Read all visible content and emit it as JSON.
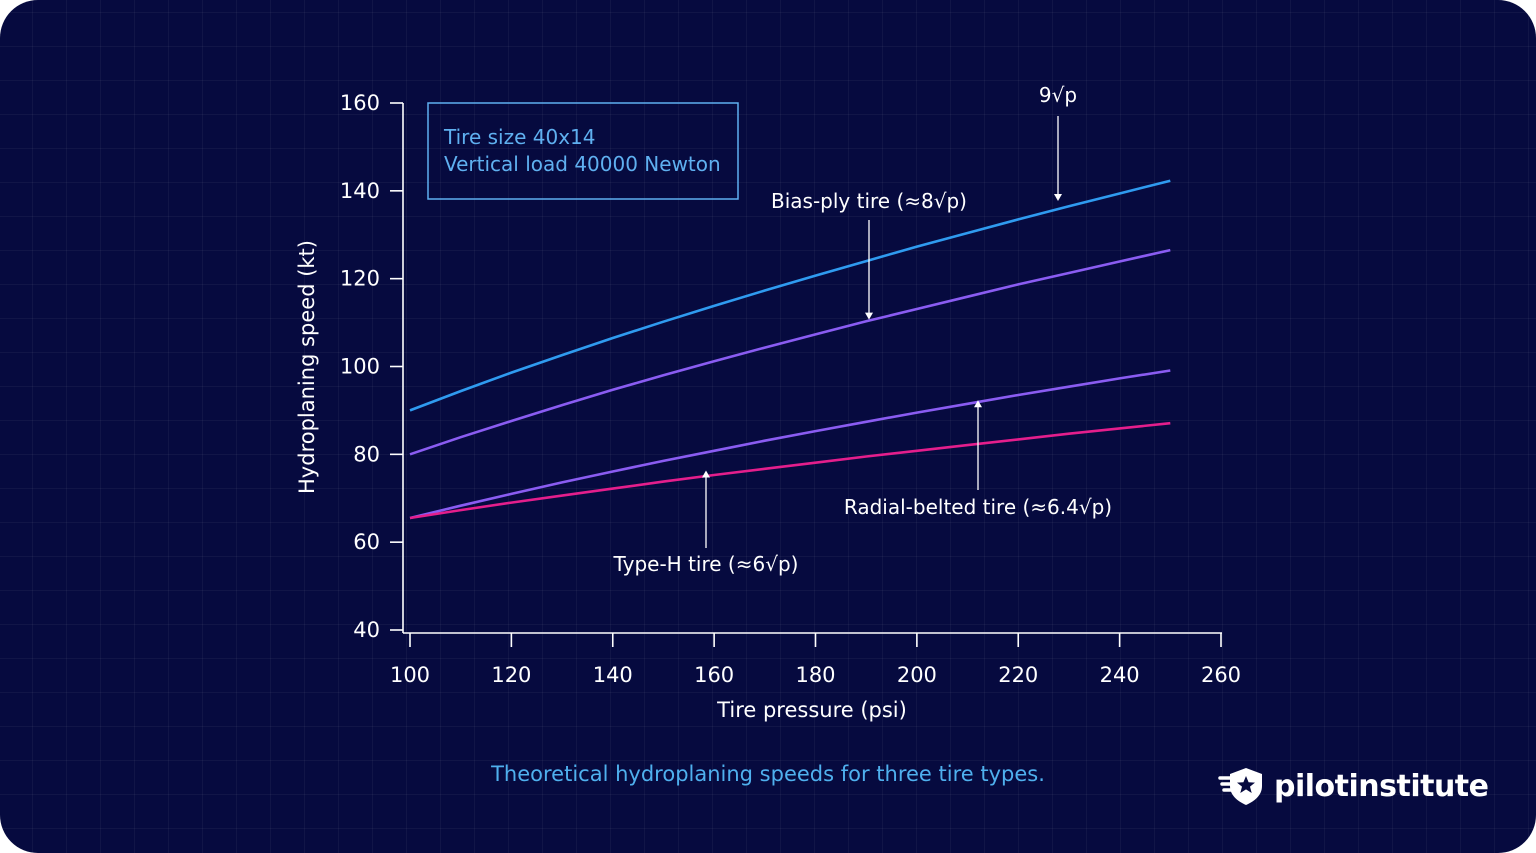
{
  "chart_data": {
    "type": "line",
    "xlabel": "Tire pressure (psi)",
    "ylabel": "Hydroplaning speed (kt)",
    "xlim": [
      100,
      260
    ],
    "ylim": [
      40,
      160
    ],
    "xticks": [
      100,
      120,
      140,
      160,
      180,
      200,
      220,
      240,
      260
    ],
    "yticks": [
      40,
      60,
      80,
      100,
      120,
      140,
      160
    ],
    "x": [
      100,
      110,
      120,
      130,
      140,
      150,
      160,
      170,
      180,
      190,
      200,
      210,
      220,
      230,
      240,
      250
    ],
    "series": [
      {
        "values": [
          90.0,
          94.4,
          98.6,
          102.6,
          106.5,
          110.2,
          113.8,
          117.3,
          120.7,
          124.0,
          127.3,
          130.4,
          133.5,
          136.5,
          139.4,
          142.3
        ],
        "color": "#2f9bf0"
      },
      {
        "values": [
          80.0,
          83.9,
          87.6,
          91.2,
          94.7,
          98.0,
          101.2,
          104.3,
          107.3,
          110.3,
          113.1,
          115.9,
          118.7,
          121.3,
          123.9,
          126.5
        ],
        "color": "#8a5cf2"
      },
      {
        "values": [
          65.5,
          68.3,
          71.0,
          73.6,
          76.1,
          78.5,
          80.8,
          83.1,
          85.3,
          87.4,
          89.5,
          91.5,
          93.5,
          95.4,
          97.3,
          99.1
        ],
        "color": "#8a5cf2"
      },
      {
        "values": [
          65.5,
          67.3,
          69.0,
          70.6,
          72.2,
          73.8,
          75.3,
          76.7,
          78.1,
          79.5,
          80.8,
          82.1,
          83.4,
          84.7,
          85.9,
          87.1
        ],
        "color": "#e41e8c"
      }
    ],
    "annotations": [
      {
        "text": "9√p",
        "at": [
          227,
          137
        ]
      },
      {
        "text": "Bias-ply tire (≈8√p)",
        "at": [
          191,
          110
        ]
      },
      {
        "text": "Radial-belted tire (≈6.4√p)",
        "at": [
          213,
          93
        ]
      },
      {
        "text": "Type-H tire (≈6√p)",
        "at": [
          159,
          77
        ]
      }
    ],
    "info_box": [
      "Tire size 40x14",
      "Vertical load 40000 Newton"
    ],
    "grid": false
  },
  "caption": "Theoretical hydroplaning speeds for three tire types.",
  "brand": {
    "name": "pilotinstitute",
    "icon": "shield-star-wings-icon"
  },
  "colors": {
    "background": "#060a3f",
    "caption": "#4fb0ee",
    "box": "#5fb0f0"
  }
}
